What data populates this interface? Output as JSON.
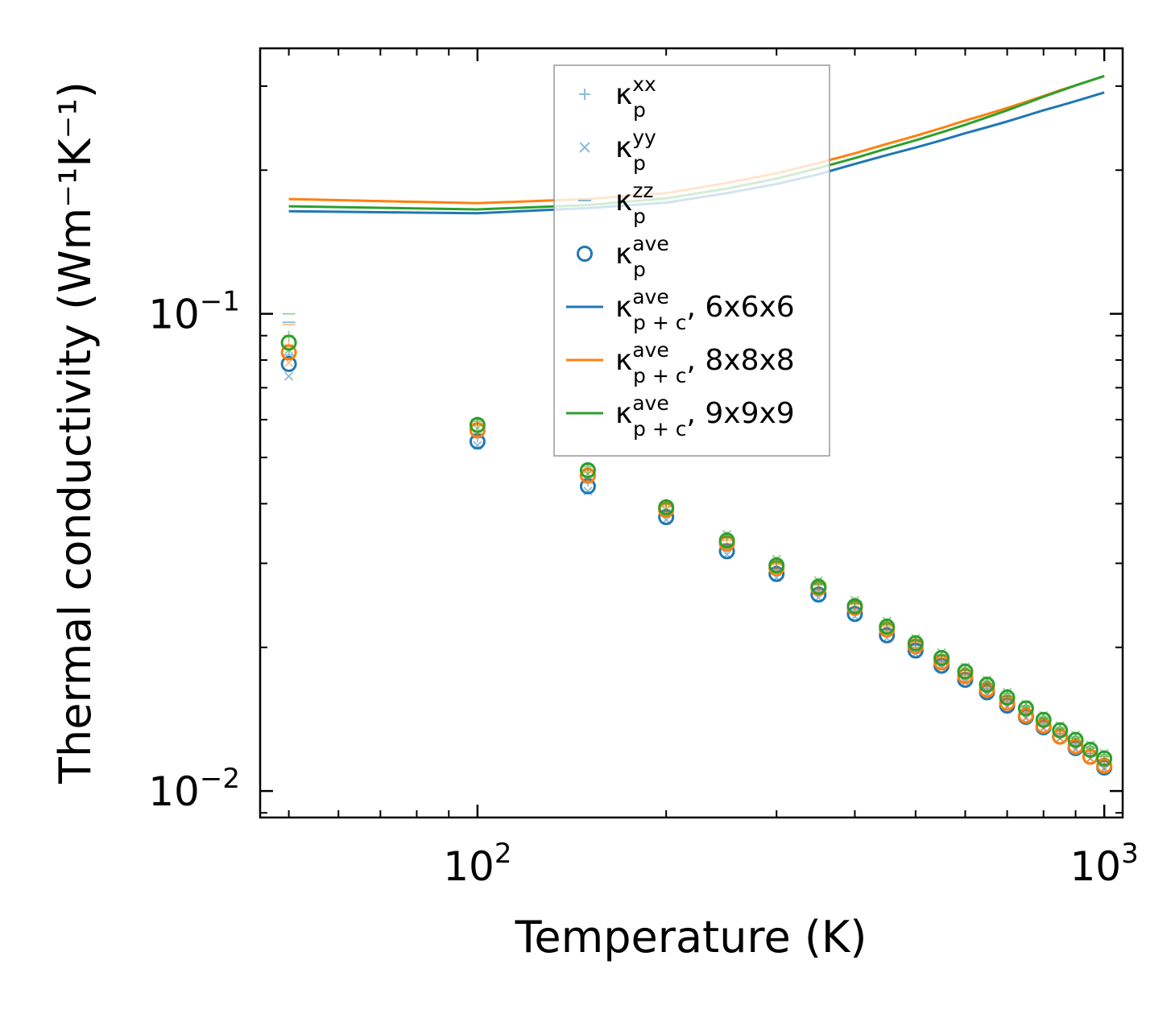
{
  "chart_data": {
    "type": "scatter",
    "title": "",
    "xlabel": "Temperature (K)",
    "ylabel": "Thermal conductivity (Wm⁻¹K⁻¹)",
    "xscale": "log",
    "yscale": "log",
    "xlim": [
      45,
      1070
    ],
    "ylim": [
      0.0088,
      0.36
    ],
    "x_ticks": [
      {
        "value": 100,
        "label": "10",
        "exp": "2"
      },
      {
        "value": 1000,
        "label": "10",
        "exp": "3"
      }
    ],
    "y_ticks": [
      {
        "value": 0.01,
        "label": "10",
        "exp": "−2"
      },
      {
        "value": 0.1,
        "label": "10",
        "exp": "−1"
      }
    ],
    "colors": {
      "c6": "#1f77b4",
      "c8": "#ff7f0e",
      "c9": "#2ca02c"
    },
    "legend": {
      "position": "upper-center",
      "entries": [
        {
          "marker": "plus",
          "base": "κ",
          "sup": "xx",
          "sub": "p",
          "suffix": ""
        },
        {
          "marker": "x",
          "base": "κ",
          "sup": "yy",
          "sub": "p",
          "suffix": ""
        },
        {
          "marker": "hline",
          "base": "κ",
          "sup": "zz",
          "sub": "p",
          "suffix": ""
        },
        {
          "marker": "circle",
          "base": "κ",
          "sup": "ave",
          "sub": "p",
          "suffix": ""
        },
        {
          "marker": "line",
          "color": "#1f77b4",
          "base": "κ",
          "sup": "ave",
          "sub": "p + c",
          "suffix": ", 6x6x6"
        },
        {
          "marker": "line",
          "color": "#ff7f0e",
          "base": "κ",
          "sup": "ave",
          "sub": "p + c",
          "suffix": ", 8x8x8"
        },
        {
          "marker": "line",
          "color": "#2ca02c",
          "base": "κ",
          "sup": "ave",
          "sub": "p + c",
          "suffix": ", 9x9x9"
        }
      ]
    },
    "x": [
      50,
      100,
      150,
      200,
      250,
      300,
      350,
      400,
      450,
      500,
      550,
      600,
      650,
      700,
      750,
      800,
      850,
      900,
      950,
      1000
    ],
    "series": [
      {
        "name": "6x6x6",
        "color": "#1f77b4",
        "ave": [
          0.0785,
          0.054,
          0.0435,
          0.0375,
          0.0318,
          0.0285,
          0.0258,
          0.0235,
          0.0212,
          0.0197,
          0.0183,
          0.0171,
          0.0161,
          0.0151,
          0.0143,
          0.0136,
          0.013,
          0.0123,
          0.0118,
          0.0112
        ],
        "xx": [
          0.082,
          0.055,
          0.0445,
          0.0382,
          0.0323,
          0.029,
          0.0262,
          0.0239,
          0.0215,
          0.02,
          0.0186,
          0.0173,
          0.0163,
          0.0153,
          0.0145,
          0.0138,
          0.0131,
          0.0125,
          0.0119,
          0.0113
        ],
        "yy": [
          0.074,
          0.053,
          0.0425,
          0.037,
          0.0313,
          0.028,
          0.0254,
          0.0232,
          0.0209,
          0.0194,
          0.0181,
          0.0169,
          0.0159,
          0.015,
          0.0142,
          0.0135,
          0.0129,
          0.0122,
          0.0117,
          0.0111
        ],
        "zz": [
          0.096,
          0.056,
          0.045,
          0.0385,
          0.0326,
          0.0292,
          0.0264,
          0.0241,
          0.0217,
          0.0202,
          0.0187,
          0.0175,
          0.0164,
          0.0154,
          0.0146,
          0.0139,
          0.0132,
          0.0126,
          0.012,
          0.0114
        ],
        "pc": [
          0.164,
          0.1625,
          0.1665,
          0.171,
          0.179,
          0.187,
          0.196,
          0.206,
          0.215,
          0.223,
          0.231,
          0.239,
          0.246,
          0.253,
          0.26,
          0.267,
          0.273,
          0.279,
          0.285,
          0.291
        ]
      },
      {
        "name": "8x8x8",
        "color": "#ff7f0e",
        "ave": [
          0.083,
          0.057,
          0.0458,
          0.0388,
          0.033,
          0.0293,
          0.0266,
          0.0242,
          0.0218,
          0.0201,
          0.0186,
          0.0174,
          0.0163,
          0.0153,
          0.0144,
          0.0137,
          0.013,
          0.0124,
          0.0118,
          0.0113
        ],
        "xx": [
          0.086,
          0.0585,
          0.0465,
          0.0395,
          0.0335,
          0.0298,
          0.027,
          0.0246,
          0.0221,
          0.0204,
          0.0189,
          0.0176,
          0.0165,
          0.0155,
          0.0146,
          0.0139,
          0.0132,
          0.0126,
          0.012,
          0.0115
        ],
        "yy": [
          0.079,
          0.056,
          0.045,
          0.0382,
          0.0325,
          0.0289,
          0.0262,
          0.0239,
          0.0215,
          0.0198,
          0.0184,
          0.0172,
          0.0161,
          0.0151,
          0.0143,
          0.0136,
          0.0129,
          0.0123,
          0.0117,
          0.0112
        ],
        "zz": [
          0.095,
          0.059,
          0.047,
          0.0398,
          0.0338,
          0.03,
          0.0272,
          0.0248,
          0.0223,
          0.0205,
          0.019,
          0.0177,
          0.0166,
          0.0156,
          0.0147,
          0.014,
          0.0133,
          0.0127,
          0.0121,
          0.0116
        ],
        "pc": [
          0.174,
          0.1705,
          0.174,
          0.179,
          0.188,
          0.197,
          0.207,
          0.217,
          0.227,
          0.236,
          0.245,
          0.254,
          0.262,
          0.27,
          0.278,
          0.286,
          0.294,
          0.301,
          0.308,
          0.315
        ]
      },
      {
        "name": "9x9x9",
        "color": "#2ca02c",
        "ave": [
          0.087,
          0.0585,
          0.047,
          0.0393,
          0.0335,
          0.0297,
          0.0268,
          0.0244,
          0.0221,
          0.0204,
          0.019,
          0.0178,
          0.0167,
          0.0157,
          0.0149,
          0.0141,
          0.0134,
          0.0128,
          0.0122,
          0.0117
        ],
        "xx": [
          0.09,
          0.0595,
          0.0478,
          0.04,
          0.0342,
          0.0303,
          0.0273,
          0.0249,
          0.0225,
          0.0207,
          0.0193,
          0.0181,
          0.017,
          0.016,
          0.0151,
          0.0143,
          0.0136,
          0.013,
          0.0124,
          0.0119
        ],
        "yy": [
          0.084,
          0.0575,
          0.0462,
          0.0388,
          0.0345,
          0.0306,
          0.0276,
          0.0251,
          0.0227,
          0.0209,
          0.0195,
          0.0182,
          0.0171,
          0.0161,
          0.0152,
          0.0144,
          0.0137,
          0.0131,
          0.0125,
          0.012
        ],
        "zz": [
          0.1,
          0.06,
          0.0482,
          0.0403,
          0.034,
          0.0301,
          0.0271,
          0.0247,
          0.0223,
          0.0206,
          0.0192,
          0.0179,
          0.0168,
          0.0158,
          0.015,
          0.0142,
          0.0135,
          0.0129,
          0.0123,
          0.0118
        ],
        "pc": [
          0.168,
          0.1655,
          0.169,
          0.1745,
          0.183,
          0.192,
          0.202,
          0.212,
          0.222,
          0.231,
          0.24,
          0.249,
          0.258,
          0.267,
          0.276,
          0.285,
          0.293,
          0.301,
          0.308,
          0.315
        ]
      }
    ]
  }
}
